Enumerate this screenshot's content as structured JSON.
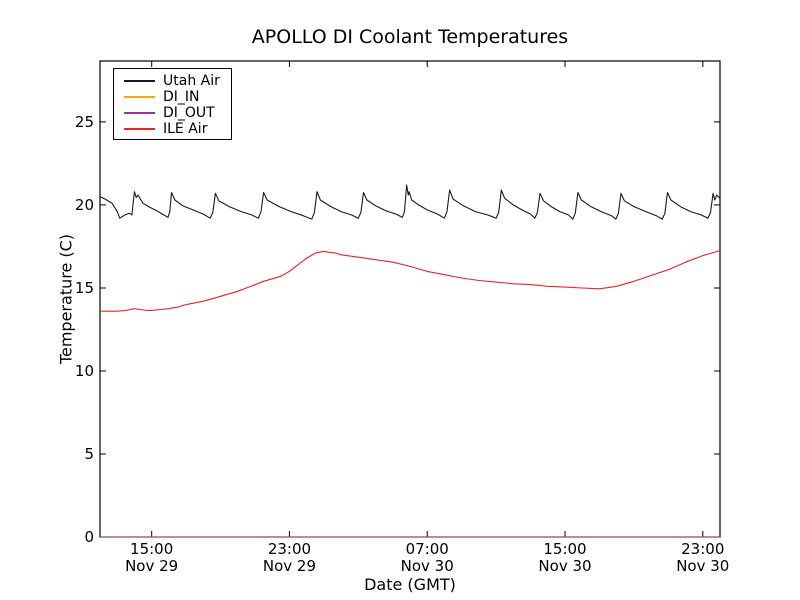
{
  "chart_data": {
    "type": "line",
    "title": "APOLLO DI Coolant Temperatures",
    "xlabel": "Date (GMT)",
    "ylabel": "Temperature (C)",
    "grid": false,
    "legend_position": "upper left",
    "x_axis": {
      "note": "t = hours after Nov 29 12:00 GMT",
      "range": [
        0,
        36
      ],
      "ticks": [
        {
          "t": 3,
          "line1": "15:00",
          "line2": "Nov 29"
        },
        {
          "t": 11,
          "line1": "23:00",
          "line2": "Nov 29"
        },
        {
          "t": 19,
          "line1": "07:00",
          "line2": "Nov 30"
        },
        {
          "t": 27,
          "line1": "15:00",
          "line2": "Nov 30"
        },
        {
          "t": 35,
          "line1": "23:00",
          "line2": "Nov 30"
        }
      ]
    },
    "y_axis": {
      "range": [
        0,
        28.67
      ],
      "ticks": [
        0,
        5,
        10,
        15,
        20,
        25
      ]
    },
    "series": [
      {
        "name": "Utah Air",
        "color": "#1a1a1a",
        "opacity": 1,
        "points": [
          [
            0,
            20.5
          ],
          [
            0.3,
            20.35
          ],
          [
            0.7,
            20.1
          ],
          [
            1.0,
            19.6
          ],
          [
            1.15,
            19.2
          ],
          [
            1.45,
            19.4
          ],
          [
            1.7,
            19.5
          ],
          [
            1.85,
            19.4
          ],
          [
            2.0,
            20.8
          ],
          [
            2.1,
            20.45
          ],
          [
            2.2,
            20.6
          ],
          [
            2.5,
            20.1
          ],
          [
            2.9,
            19.85
          ],
          [
            3.3,
            19.65
          ],
          [
            3.7,
            19.4
          ],
          [
            3.95,
            19.25
          ],
          [
            4.05,
            19.6
          ],
          [
            4.15,
            20.75
          ],
          [
            4.35,
            20.3
          ],
          [
            4.8,
            19.95
          ],
          [
            5.4,
            19.7
          ],
          [
            6.0,
            19.45
          ],
          [
            6.4,
            19.2
          ],
          [
            6.55,
            19.55
          ],
          [
            6.7,
            20.7
          ],
          [
            6.9,
            20.25
          ],
          [
            7.5,
            19.9
          ],
          [
            8.2,
            19.6
          ],
          [
            8.8,
            19.4
          ],
          [
            9.2,
            19.2
          ],
          [
            9.35,
            19.6
          ],
          [
            9.5,
            20.75
          ],
          [
            9.7,
            20.3
          ],
          [
            10.4,
            19.9
          ],
          [
            11.1,
            19.6
          ],
          [
            11.8,
            19.35
          ],
          [
            12.3,
            19.15
          ],
          [
            12.45,
            19.55
          ],
          [
            12.6,
            20.8
          ],
          [
            12.8,
            20.3
          ],
          [
            13.4,
            19.9
          ],
          [
            14.0,
            19.6
          ],
          [
            14.6,
            19.4
          ],
          [
            15.0,
            19.2
          ],
          [
            15.15,
            19.55
          ],
          [
            15.3,
            20.75
          ],
          [
            15.5,
            20.3
          ],
          [
            16.0,
            19.95
          ],
          [
            16.6,
            19.65
          ],
          [
            17.2,
            19.45
          ],
          [
            17.55,
            19.25
          ],
          [
            17.68,
            19.6
          ],
          [
            17.8,
            21.2
          ],
          [
            17.9,
            20.6
          ],
          [
            17.95,
            20.8
          ],
          [
            18.1,
            20.3
          ],
          [
            18.5,
            20.0
          ],
          [
            19.0,
            19.7
          ],
          [
            19.6,
            19.45
          ],
          [
            20.0,
            19.2
          ],
          [
            20.15,
            19.6
          ],
          [
            20.3,
            20.9
          ],
          [
            20.5,
            20.35
          ],
          [
            21.1,
            19.95
          ],
          [
            21.8,
            19.6
          ],
          [
            22.5,
            19.4
          ],
          [
            23.0,
            19.2
          ],
          [
            23.15,
            19.55
          ],
          [
            23.3,
            20.9
          ],
          [
            23.5,
            20.4
          ],
          [
            24.0,
            20.0
          ],
          [
            24.5,
            19.7
          ],
          [
            25.0,
            19.45
          ],
          [
            25.25,
            19.2
          ],
          [
            25.4,
            19.55
          ],
          [
            25.55,
            20.7
          ],
          [
            25.75,
            20.25
          ],
          [
            26.2,
            19.9
          ],
          [
            26.7,
            19.6
          ],
          [
            27.2,
            19.4
          ],
          [
            27.45,
            19.15
          ],
          [
            27.6,
            19.5
          ],
          [
            27.75,
            20.75
          ],
          [
            27.95,
            20.3
          ],
          [
            28.5,
            19.9
          ],
          [
            29.1,
            19.6
          ],
          [
            29.7,
            19.35
          ],
          [
            29.95,
            19.15
          ],
          [
            30.1,
            19.5
          ],
          [
            30.25,
            20.7
          ],
          [
            30.45,
            20.25
          ],
          [
            31.0,
            19.9
          ],
          [
            31.7,
            19.6
          ],
          [
            32.3,
            19.35
          ],
          [
            32.65,
            19.15
          ],
          [
            32.8,
            19.5
          ],
          [
            32.95,
            20.75
          ],
          [
            33.15,
            20.3
          ],
          [
            33.7,
            19.9
          ],
          [
            34.3,
            19.6
          ],
          [
            34.9,
            19.4
          ],
          [
            35.3,
            19.2
          ],
          [
            35.45,
            19.55
          ],
          [
            35.6,
            20.7
          ],
          [
            35.7,
            20.3
          ],
          [
            35.8,
            20.6
          ],
          [
            36,
            20.4
          ]
        ]
      },
      {
        "name": "DI_IN",
        "color": "#ffa500",
        "opacity": 0.75,
        "points": [
          [
            0,
            0
          ],
          [
            36,
            0
          ]
        ]
      },
      {
        "name": "DI_OUT",
        "color": "#993399",
        "opacity": 0.6,
        "points": [
          [
            0,
            0
          ],
          [
            36,
            0
          ]
        ]
      },
      {
        "name": "ILE Air",
        "color": "#ee2222",
        "opacity": 1,
        "points": [
          [
            0,
            13.6
          ],
          [
            0.5,
            13.6
          ],
          [
            1.0,
            13.6
          ],
          [
            1.5,
            13.65
          ],
          [
            2.0,
            13.75
          ],
          [
            2.3,
            13.7
          ],
          [
            2.7,
            13.65
          ],
          [
            3.0,
            13.65
          ],
          [
            3.5,
            13.7
          ],
          [
            4.0,
            13.75
          ],
          [
            4.5,
            13.85
          ],
          [
            5.0,
            14.0
          ],
          [
            5.5,
            14.1
          ],
          [
            6.0,
            14.2
          ],
          [
            6.5,
            14.35
          ],
          [
            7.0,
            14.5
          ],
          [
            7.5,
            14.65
          ],
          [
            8.0,
            14.8
          ],
          [
            8.5,
            15.0
          ],
          [
            9.0,
            15.2
          ],
          [
            9.5,
            15.4
          ],
          [
            10.0,
            15.55
          ],
          [
            10.5,
            15.7
          ],
          [
            11.0,
            16.0
          ],
          [
            11.5,
            16.4
          ],
          [
            12.0,
            16.8
          ],
          [
            12.5,
            17.1
          ],
          [
            13.0,
            17.2
          ],
          [
            13.3,
            17.15
          ],
          [
            13.7,
            17.1
          ],
          [
            14.0,
            17.0
          ],
          [
            15.0,
            16.85
          ],
          [
            16.0,
            16.7
          ],
          [
            17.0,
            16.55
          ],
          [
            18.0,
            16.3
          ],
          [
            19.0,
            16.0
          ],
          [
            20.0,
            15.8
          ],
          [
            21.0,
            15.6
          ],
          [
            22.0,
            15.45
          ],
          [
            23.0,
            15.35
          ],
          [
            24.0,
            15.25
          ],
          [
            25.0,
            15.2
          ],
          [
            26.0,
            15.1
          ],
          [
            27.0,
            15.05
          ],
          [
            28.0,
            15.0
          ],
          [
            29.0,
            14.95
          ],
          [
            30.0,
            15.1
          ],
          [
            31.0,
            15.4
          ],
          [
            32.0,
            15.75
          ],
          [
            33.0,
            16.1
          ],
          [
            34.0,
            16.55
          ],
          [
            35.0,
            16.95
          ],
          [
            35.5,
            17.1
          ],
          [
            36,
            17.25
          ]
        ]
      }
    ]
  }
}
